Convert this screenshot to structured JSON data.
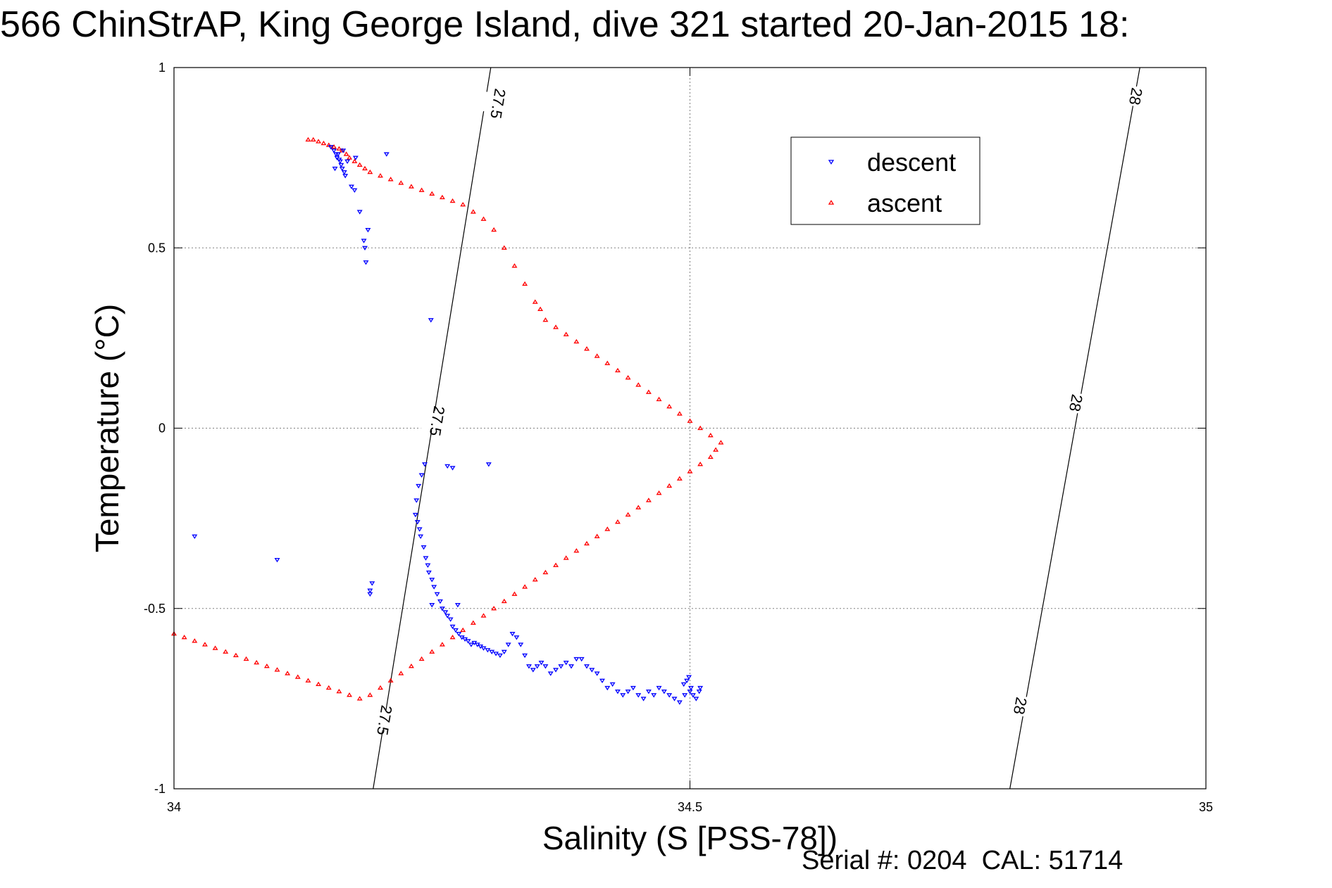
{
  "title": "566 ChinStrAP, King George Island, dive 321 started 20-Jan-2015 18:",
  "footer": "Serial #: 0204  CAL: 51714",
  "chart_data": {
    "type": "scatter",
    "title": "566 ChinStrAP, King George Island, dive 321 started 20-Jan-2015 18:",
    "xlabel": "Salinity (S [PSS-78])",
    "ylabel": "Temperature (°C)",
    "xlim": [
      34,
      35
    ],
    "ylim": [
      -1,
      1
    ],
    "xticks": [
      34,
      34.5,
      35
    ],
    "xtick_labels": [
      "34",
      "34.5",
      "35"
    ],
    "yticks": [
      -1,
      -0.5,
      0,
      0.5,
      1
    ],
    "ytick_labels": [
      "-1",
      "-0.5",
      "0",
      "0.5",
      "1"
    ],
    "grid": true,
    "legend": {
      "placement": "top-right",
      "entries": [
        "descent",
        "ascent"
      ]
    },
    "colors": {
      "descent": "#0000ff",
      "ascent": "#ff0000",
      "axes": "#000000",
      "grid": "#808080"
    },
    "isopycnals": [
      {
        "label": "27.5",
        "x": [
          34.193,
          34.307
        ],
        "y": [
          -1,
          1
        ],
        "label_points": [
          [
            34.204,
            -0.81
          ],
          [
            34.255,
            0.02
          ],
          [
            34.314,
            0.9
          ]
        ]
      },
      {
        "label": "28",
        "x": [
          34.81,
          34.936
        ],
        "y": [
          -1,
          1
        ],
        "label_points": [
          [
            34.82,
            -0.77
          ],
          [
            34.874,
            0.07
          ],
          [
            34.932,
            0.92
          ]
        ]
      }
    ],
    "series": [
      {
        "name": "descent",
        "marker": "triangle-down",
        "x": [
          34.152,
          34.155,
          34.157,
          34.158,
          34.16,
          34.162,
          34.163,
          34.165,
          34.161,
          34.159,
          34.156,
          34.164,
          34.168,
          34.166,
          34.172,
          34.175,
          34.176,
          34.18,
          34.184,
          34.185,
          34.186,
          34.188,
          34.206,
          34.249,
          34.02,
          34.1,
          34.192,
          34.19,
          34.19,
          34.25,
          34.243,
          34.24,
          34.237,
          34.235,
          34.234,
          34.236,
          34.238,
          34.239,
          34.242,
          34.244,
          34.246,
          34.247,
          34.25,
          34.252,
          34.255,
          34.258,
          34.26,
          34.263,
          34.265,
          34.268,
          34.27,
          34.273,
          34.276,
          34.279,
          34.282,
          34.285,
          34.288,
          34.291,
          34.294,
          34.297,
          34.3,
          34.304,
          34.308,
          34.312,
          34.316,
          34.32,
          34.324,
          34.328,
          34.332,
          34.336,
          34.34,
          34.344,
          34.348,
          34.352,
          34.356,
          34.36,
          34.365,
          34.37,
          34.375,
          34.38,
          34.385,
          34.39,
          34.395,
          34.4,
          34.405,
          34.41,
          34.415,
          34.42,
          34.425,
          34.43,
          34.435,
          34.44,
          34.445,
          34.45,
          34.455,
          34.46,
          34.465,
          34.47,
          34.475,
          34.48,
          34.485,
          34.49,
          34.495,
          34.5,
          34.494,
          34.497,
          34.499,
          34.501,
          34.503,
          34.506,
          34.509,
          34.51,
          34.265,
          34.27,
          34.275,
          34.305
        ],
        "y": [
          0.78,
          0.77,
          0.76,
          0.75,
          0.745,
          0.73,
          0.72,
          0.71,
          0.74,
          0.76,
          0.72,
          0.77,
          0.74,
          0.7,
          0.67,
          0.66,
          0.75,
          0.6,
          0.52,
          0.5,
          0.46,
          0.55,
          0.76,
          0.3,
          -0.3,
          -0.365,
          -0.43,
          -0.45,
          -0.46,
          -0.49,
          -0.1,
          -0.13,
          -0.16,
          -0.2,
          -0.24,
          -0.26,
          -0.28,
          -0.3,
          -0.33,
          -0.36,
          -0.38,
          -0.4,
          -0.42,
          -0.44,
          -0.46,
          -0.48,
          -0.5,
          -0.51,
          -0.52,
          -0.53,
          -0.55,
          -0.56,
          -0.57,
          -0.58,
          -0.585,
          -0.59,
          -0.6,
          -0.595,
          -0.6,
          -0.605,
          -0.61,
          -0.615,
          -0.62,
          -0.625,
          -0.63,
          -0.62,
          -0.6,
          -0.57,
          -0.58,
          -0.6,
          -0.63,
          -0.66,
          -0.67,
          -0.66,
          -0.65,
          -0.66,
          -0.68,
          -0.67,
          -0.66,
          -0.65,
          -0.66,
          -0.64,
          -0.64,
          -0.66,
          -0.67,
          -0.68,
          -0.7,
          -0.72,
          -0.71,
          -0.73,
          -0.74,
          -0.73,
          -0.72,
          -0.74,
          -0.75,
          -0.73,
          -0.74,
          -0.72,
          -0.73,
          -0.74,
          -0.75,
          -0.76,
          -0.74,
          -0.73,
          -0.71,
          -0.7,
          -0.69,
          -0.72,
          -0.74,
          -0.75,
          -0.73,
          -0.72,
          -0.105,
          -0.11,
          -0.49,
          -0.1
        ],
        "note": ""
      },
      {
        "name": "ascent",
        "marker": "triangle-up",
        "x": [
          34.13,
          34.135,
          34.14,
          34.145,
          34.15,
          34.155,
          34.16,
          34.163,
          34.167,
          34.17,
          34.175,
          34.18,
          34.185,
          34.19,
          34.2,
          34.21,
          34.22,
          34.23,
          34.24,
          34.25,
          34.26,
          34.27,
          34.28,
          34.29,
          34.3,
          34.31,
          34.32,
          34.33,
          34.34,
          34.35,
          34.355,
          34.36,
          34.37,
          34.38,
          34.39,
          34.4,
          34.41,
          34.42,
          34.43,
          34.44,
          34.45,
          34.46,
          34.47,
          34.48,
          34.49,
          34.5,
          34.51,
          34.52,
          34.53,
          34.525,
          34.52,
          34.51,
          34.5,
          34.49,
          34.48,
          34.47,
          34.46,
          34.45,
          34.44,
          34.43,
          34.42,
          34.41,
          34.4,
          34.39,
          34.38,
          34.37,
          34.36,
          34.35,
          34.34,
          34.33,
          34.32,
          34.31,
          34.3,
          34.29,
          34.28,
          34.27,
          34.26,
          34.25,
          34.24,
          34.23,
          34.22,
          34.21,
          34.2,
          34.19,
          34.18,
          34.17,
          34.16,
          34.15,
          34.14,
          34.13,
          34.12,
          34.11,
          34.1,
          34.09,
          34.08,
          34.07,
          34.06,
          34.05,
          34.04,
          34.03,
          34.02,
          34.01,
          34.0
        ],
        "y": [
          0.8,
          0.8,
          0.795,
          0.79,
          0.785,
          0.78,
          0.775,
          0.77,
          0.76,
          0.75,
          0.74,
          0.73,
          0.72,
          0.71,
          0.7,
          0.69,
          0.68,
          0.67,
          0.66,
          0.65,
          0.64,
          0.63,
          0.62,
          0.6,
          0.58,
          0.55,
          0.5,
          0.45,
          0.4,
          0.35,
          0.33,
          0.3,
          0.28,
          0.26,
          0.24,
          0.22,
          0.2,
          0.18,
          0.16,
          0.14,
          0.12,
          0.1,
          0.08,
          0.06,
          0.04,
          0.02,
          0.0,
          -0.02,
          -0.04,
          -0.06,
          -0.08,
          -0.1,
          -0.12,
          -0.14,
          -0.16,
          -0.18,
          -0.2,
          -0.22,
          -0.24,
          -0.26,
          -0.28,
          -0.3,
          -0.32,
          -0.34,
          -0.36,
          -0.38,
          -0.4,
          -0.42,
          -0.44,
          -0.46,
          -0.48,
          -0.5,
          -0.52,
          -0.54,
          -0.56,
          -0.58,
          -0.6,
          -0.62,
          -0.64,
          -0.66,
          -0.68,
          -0.7,
          -0.72,
          -0.74,
          -0.75,
          -0.74,
          -0.73,
          -0.72,
          -0.71,
          -0.7,
          -0.69,
          -0.68,
          -0.67,
          -0.66,
          -0.65,
          -0.64,
          -0.63,
          -0.62,
          -0.61,
          -0.6,
          -0.59,
          -0.58,
          -0.57
        ]
      }
    ]
  }
}
